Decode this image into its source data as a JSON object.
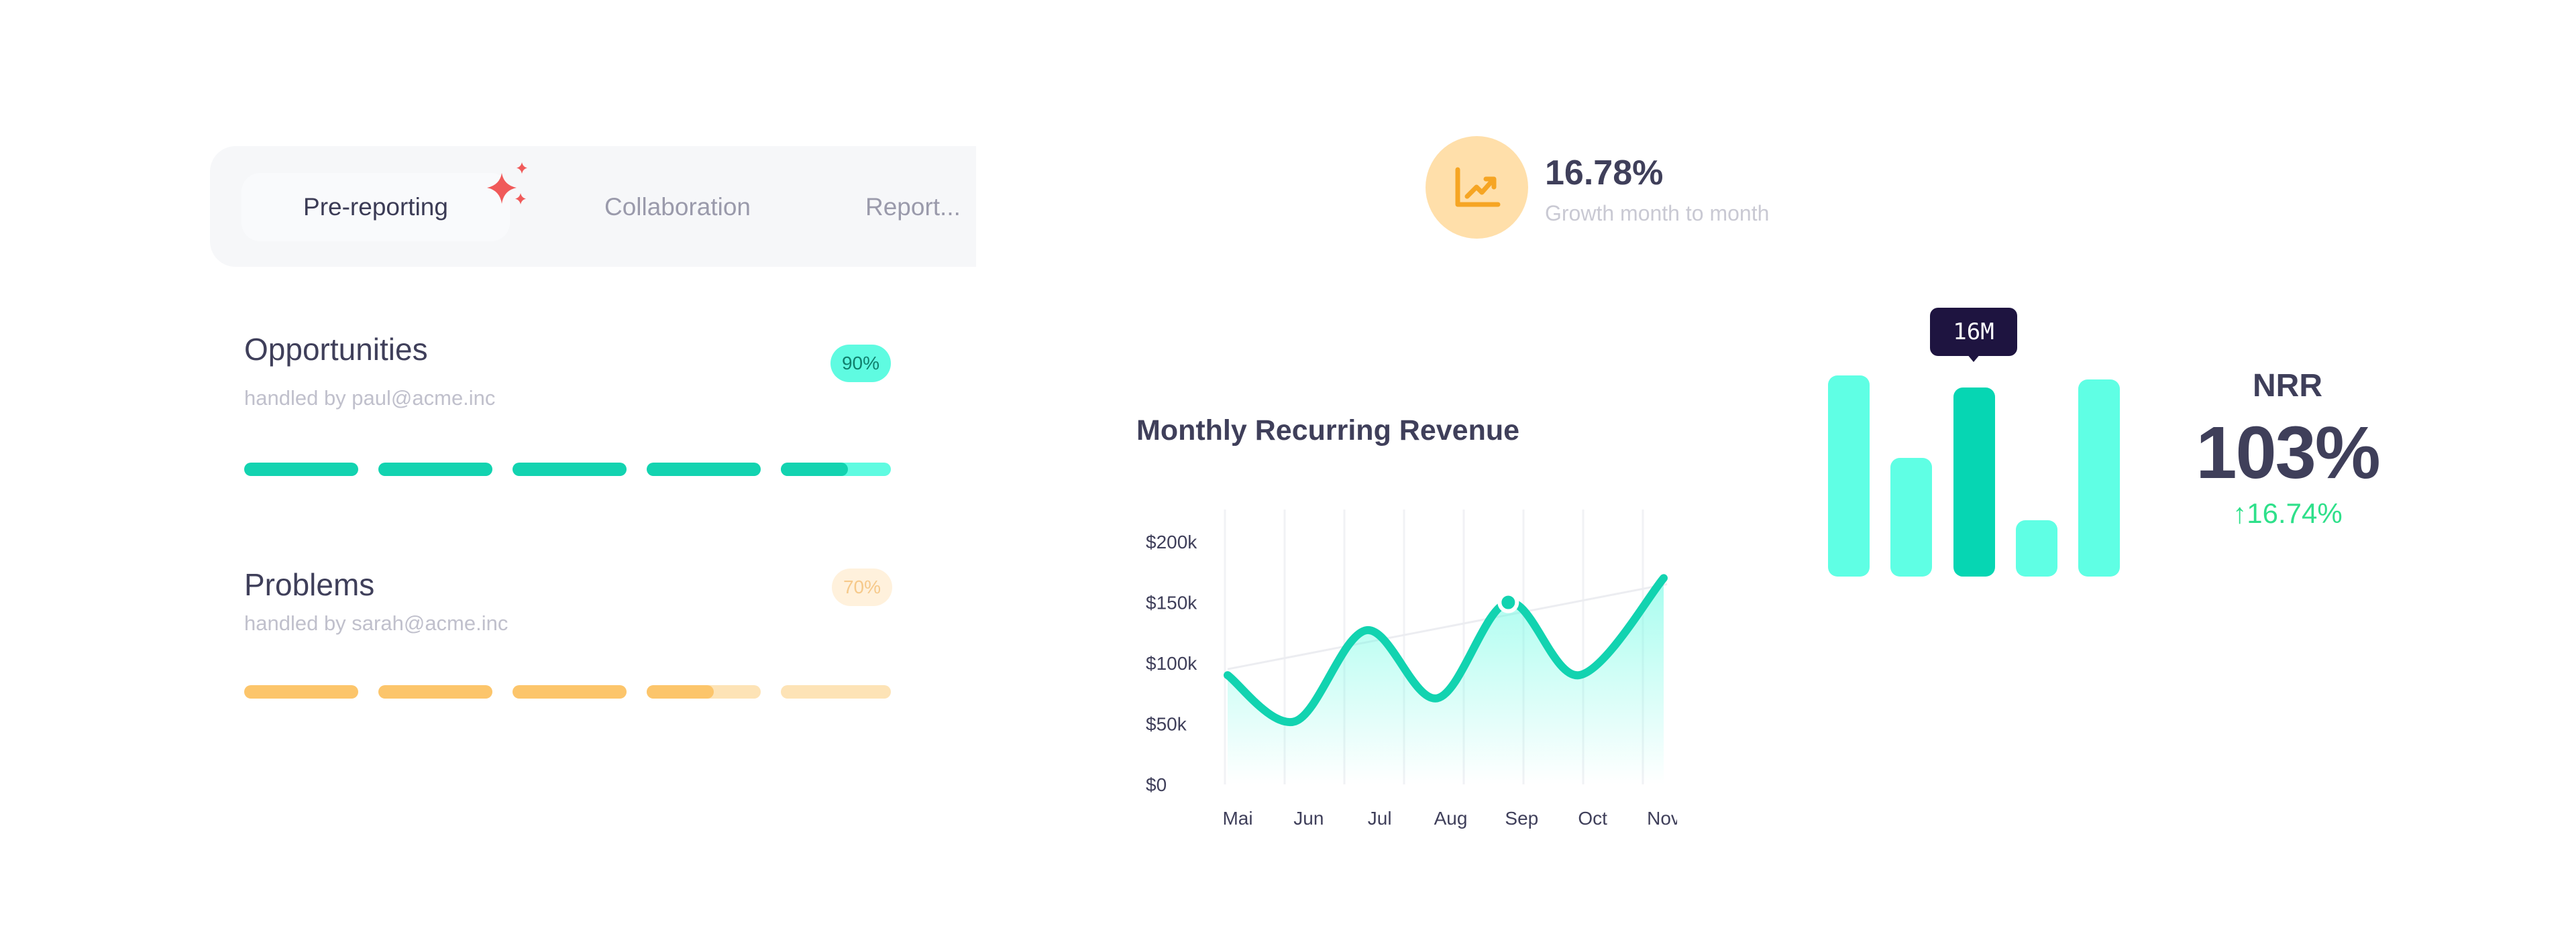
{
  "tabs": [
    {
      "label": "Pre-reporting",
      "active": true
    },
    {
      "label": "Collaboration",
      "active": false
    },
    {
      "label": "Report...",
      "active": false
    }
  ],
  "opportunities": {
    "title": "Opportunities",
    "handled_by": "handled by paul@acme.inc",
    "badge": "90%",
    "progress": 0.9,
    "color": "#12d3b0"
  },
  "problems": {
    "title": "Problems",
    "handled_by": "handled by sarah@acme.inc",
    "badge": "70%",
    "progress": 0.7,
    "color": "#fcc56b"
  },
  "growth": {
    "value": "16.78%",
    "label": "Growth month to month",
    "icon": "chart-trend-up-icon"
  },
  "chart_data": [
    {
      "type": "area",
      "title": "Monthly Recurring Revenue",
      "categories": [
        "Mai",
        "Jun",
        "Jul",
        "Aug",
        "Sep",
        "Oct",
        "Nov"
      ],
      "yticks": [
        "$0",
        "$50k",
        "$100k",
        "$150k",
        "$200k"
      ],
      "ylim": [
        0,
        200000
      ],
      "highlight_index": 4,
      "series": [
        {
          "values": [
            90000,
            52000,
            127000,
            71000,
            150000,
            90000,
            170000
          ],
          "color": "#12d3b0"
        }
      ],
      "trend_line": {
        "from": 95000,
        "to": 165000
      },
      "grid": true
    },
    {
      "type": "bar",
      "title": "NRR",
      "values": [
        100,
        59,
        94,
        28,
        98
      ],
      "highlight_index": 2,
      "highlight_label": "16M",
      "colors": {
        "bar": "#5fffe4",
        "highlight": "#06d6b3"
      }
    }
  ],
  "nrr": {
    "label": "NRR",
    "value": "103%",
    "change": "↑16.74%"
  }
}
